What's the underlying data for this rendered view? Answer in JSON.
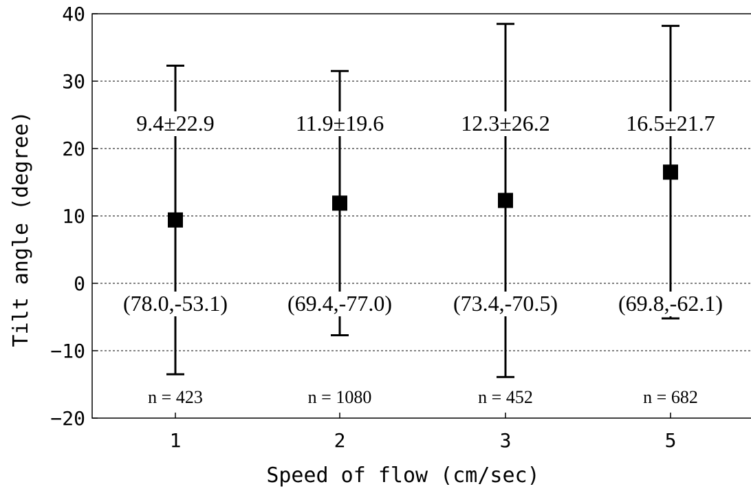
{
  "chart_data": {
    "type": "scatter",
    "title": "",
    "xlabel": "Speed of flow (cm/sec)",
    "ylabel": "Tilt angle (degree)",
    "categories": [
      "1",
      "2",
      "3",
      "5"
    ],
    "ylim": [
      -20,
      40
    ],
    "yticks": [
      "-20",
      "-10",
      "0",
      "10",
      "20",
      "30",
      "40"
    ],
    "grid": "horizontal-dashed",
    "series": [
      {
        "marker": "filled-square",
        "color": "#000000",
        "values": [
          9.4,
          11.9,
          12.3,
          16.5
        ],
        "error_upper": [
          32.3,
          31.5,
          38.5,
          38.2
        ],
        "error_lower": [
          -13.5,
          -7.7,
          -13.9,
          -5.2
        ]
      }
    ],
    "mean_sd_labels": [
      "9.4±22.9",
      "11.9±19.6",
      "12.3±26.2",
      "16.5±21.7"
    ],
    "range_labels": [
      "(78.0,-53.1)",
      "(69.4,-77.0)",
      "(73.4,-70.5)",
      "(69.8,-62.1)"
    ],
    "n_labels": [
      "n = 423",
      "n = 1080",
      "n = 452",
      "n = 682"
    ]
  }
}
